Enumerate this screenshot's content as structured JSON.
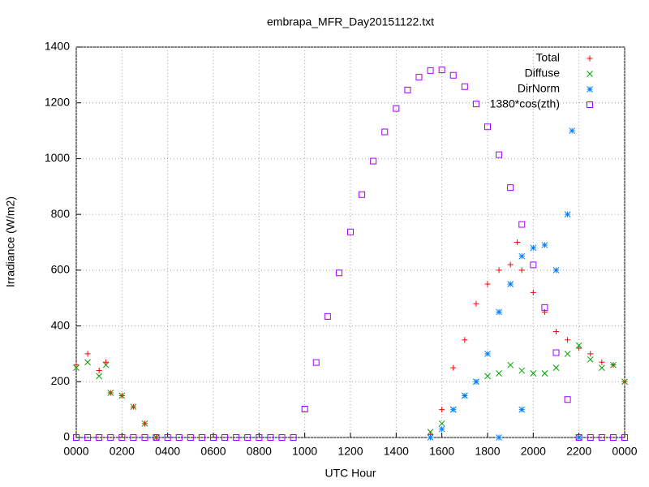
{
  "chart_data": {
    "type": "scatter",
    "title": "embrapa_MFR_Day20151122.txt",
    "xlabel": "UTC Hour",
    "ylabel": "Irradiance (W/m2)",
    "xlim": [
      0,
      24
    ],
    "ylim": [
      0,
      1400
    ],
    "xticks": [
      {
        "value": 0,
        "label": "0000"
      },
      {
        "value": 2,
        "label": "0200"
      },
      {
        "value": 4,
        "label": "0400"
      },
      {
        "value": 6,
        "label": "0600"
      },
      {
        "value": 8,
        "label": "0800"
      },
      {
        "value": 10,
        "label": "1000"
      },
      {
        "value": 12,
        "label": "1200"
      },
      {
        "value": 14,
        "label": "1400"
      },
      {
        "value": 16,
        "label": "1600"
      },
      {
        "value": 18,
        "label": "1800"
      },
      {
        "value": 20,
        "label": "2000"
      },
      {
        "value": 22,
        "label": "2200"
      },
      {
        "value": 24,
        "label": "0000"
      }
    ],
    "yticks": [
      0,
      200,
      400,
      600,
      800,
      1000,
      1200,
      1400
    ],
    "grid": true,
    "legend": "top-right",
    "series": [
      {
        "name": "Total",
        "color": "#ff0000",
        "marker": "plus",
        "x": [
          0,
          0.5,
          1,
          1.3,
          1.5,
          2,
          2.5,
          3,
          3.5,
          15.5,
          16,
          16.5,
          17,
          17.5,
          18,
          18.5,
          19,
          19.3,
          19.5,
          20,
          20.5,
          21,
          21.5,
          22,
          22.5,
          23,
          23.5,
          24
        ],
        "values": [
          260,
          300,
          240,
          270,
          160,
          150,
          110,
          50,
          0,
          10,
          100,
          250,
          350,
          480,
          550,
          600,
          620,
          700,
          600,
          520,
          450,
          380,
          350,
          320,
          300,
          270,
          260,
          200
        ]
      },
      {
        "name": "Diffuse",
        "color": "#00a000",
        "marker": "cross",
        "x": [
          0,
          0.5,
          1,
          1.3,
          1.5,
          2,
          2.5,
          3,
          3.5,
          15.5,
          16,
          16.5,
          17,
          17.5,
          18,
          18.5,
          19,
          19.5,
          20,
          20.5,
          21,
          21.5,
          22,
          22.5,
          23,
          23.5,
          24
        ],
        "values": [
          250,
          270,
          220,
          260,
          160,
          150,
          110,
          50,
          0,
          20,
          50,
          100,
          150,
          200,
          220,
          230,
          260,
          240,
          230,
          230,
          250,
          300,
          330,
          280,
          250,
          260,
          200
        ]
      },
      {
        "name": "DirNorm",
        "color": "#0080ff",
        "marker": "star",
        "x": [
          15.5,
          16,
          16.5,
          17,
          17.5,
          18,
          18.5,
          18.5,
          19,
          19.5,
          19.5,
          20,
          20.5,
          21,
          21.5,
          21.7,
          22
        ],
        "values": [
          0,
          30,
          100,
          150,
          200,
          300,
          450,
          0,
          550,
          650,
          100,
          680,
          690,
          600,
          800,
          1100,
          0
        ]
      },
      {
        "name": "1380*cos(zth)",
        "color": "#a000ff",
        "marker": "square",
        "x": [
          0,
          0.5,
          1,
          1.5,
          2,
          2.5,
          3,
          3.5,
          4,
          4.5,
          5,
          5.5,
          6,
          6.5,
          7,
          7.5,
          8,
          8.5,
          9,
          9.5,
          10,
          10.5,
          11,
          11.5,
          12,
          12.5,
          13,
          13.5,
          14,
          14.5,
          15,
          15.5,
          16,
          16.5,
          17,
          17.5,
          18,
          18.5,
          19,
          19.5,
          20,
          20.5,
          21,
          21.5,
          22,
          22.5,
          23,
          23.5,
          24
        ],
        "values": [
          0,
          0,
          0,
          0,
          0,
          0,
          0,
          0,
          0,
          0,
          0,
          0,
          0,
          0,
          0,
          0,
          0,
          0,
          0,
          0,
          102,
          269,
          434,
          590,
          737,
          871,
          991,
          1096,
          1180,
          1246,
          1292,
          1316,
          1318,
          1299,
          1258,
          1196,
          1114,
          1014,
          896,
          764,
          619,
          466,
          304,
          136,
          0,
          0,
          0,
          0,
          0
        ]
      }
    ]
  }
}
